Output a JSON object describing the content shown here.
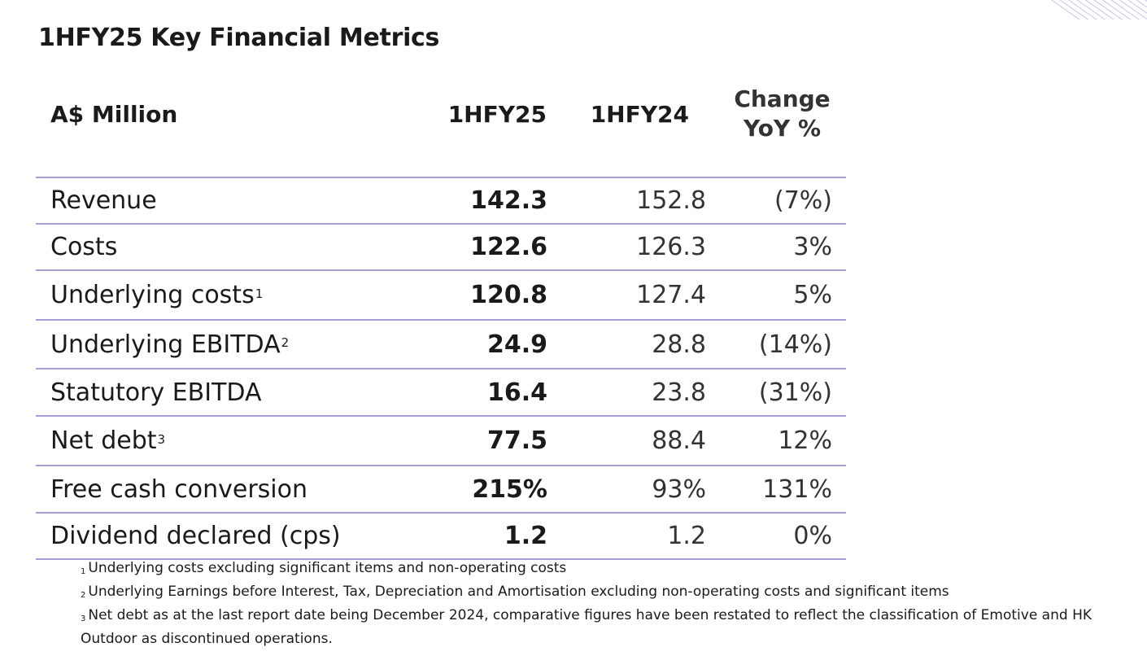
{
  "title": "1HFY25 Key Financial Metrics",
  "table": {
    "headers": {
      "label": "A$ Million",
      "current": "1HFY25",
      "prior": "1HFY24",
      "change_line1": "Change",
      "change_line2": "YoY %"
    },
    "rows": [
      {
        "label": "Revenue",
        "note": "",
        "current": "142.3",
        "prior": "152.8",
        "change": "(7%)"
      },
      {
        "label": "Costs",
        "note": "",
        "current": "122.6",
        "prior": "126.3",
        "change": "3%"
      },
      {
        "label": "Underlying costs",
        "note": "1",
        "current": "120.8",
        "prior": "127.4",
        "change": "5%"
      },
      {
        "label": "Underlying EBITDA",
        "note": "2",
        "current": "24.9",
        "prior": "28.8",
        "change": "(14%)"
      },
      {
        "label": "Statutory EBITDA",
        "note": "",
        "current": "16.4",
        "prior": "23.8",
        "change": "(31%)"
      },
      {
        "label": "Net debt",
        "note": "3",
        "current": "77.5",
        "prior": "88.4",
        "change": "12%"
      },
      {
        "label": "Free cash conversion",
        "note": "",
        "current": "215%",
        "prior": "93%",
        "change": "131%"
      },
      {
        "label": "Dividend declared (cps)",
        "note": "",
        "current": "1.2",
        "prior": "1.2",
        "change": "0%"
      }
    ]
  },
  "footnotes": [
    {
      "mark": "1",
      "text": "Underlying costs excluding significant items and non-operating costs"
    },
    {
      "mark": "2",
      "text": "Underlying Earnings before Interest, Tax, Depreciation and Amortisation excluding non-operating costs and significant items"
    },
    {
      "mark": "3",
      "text": "Net debt as at the last report date being December 2024, comparative figures have been restated to reflect the classification of Emotive and HK Outdoor as discontinued operations."
    }
  ],
  "colors": {
    "rule": "#a59fd6",
    "text": "#1a1a1a"
  }
}
